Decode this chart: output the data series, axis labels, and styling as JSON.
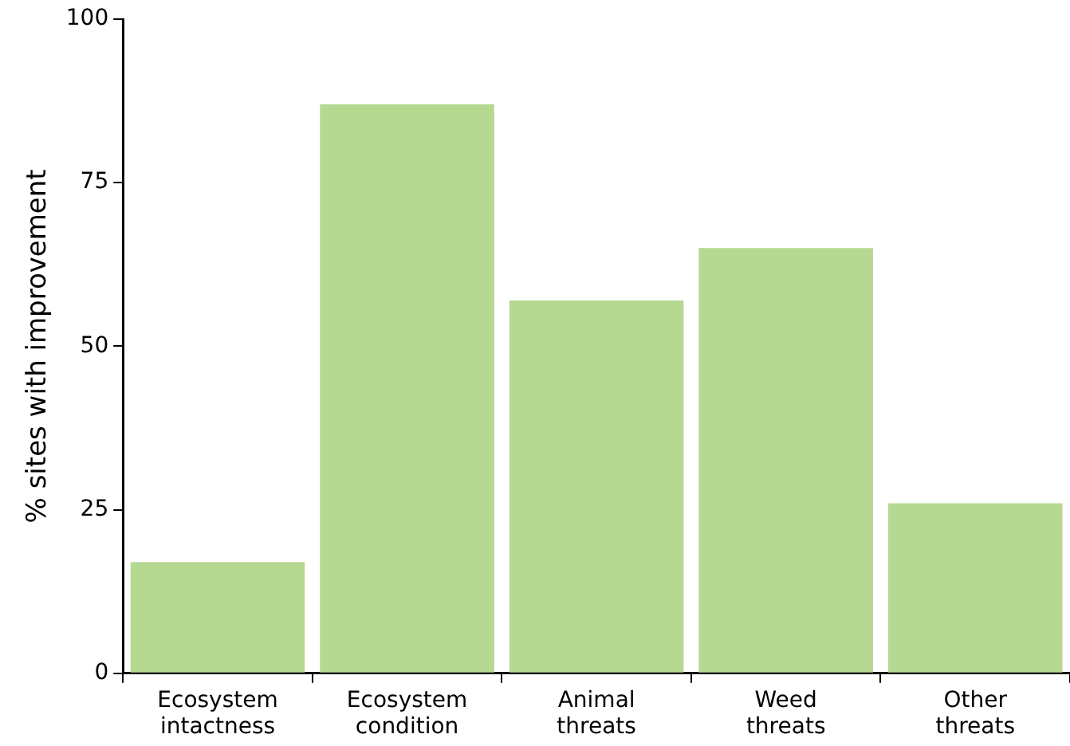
{
  "chart_data": {
    "type": "bar",
    "ylabel": "% sites with improvement",
    "categories": [
      "Ecosystem intactness",
      "Ecosystem condition",
      "Animal threats",
      "Weed threats",
      "Other threats"
    ],
    "values": [
      17,
      87,
      57,
      65,
      26
    ],
    "color": "#b5d991",
    "ylim": [
      0,
      100
    ],
    "yticks": [
      0,
      25,
      50,
      75,
      100
    ],
    "grid": false,
    "legend": false
  }
}
